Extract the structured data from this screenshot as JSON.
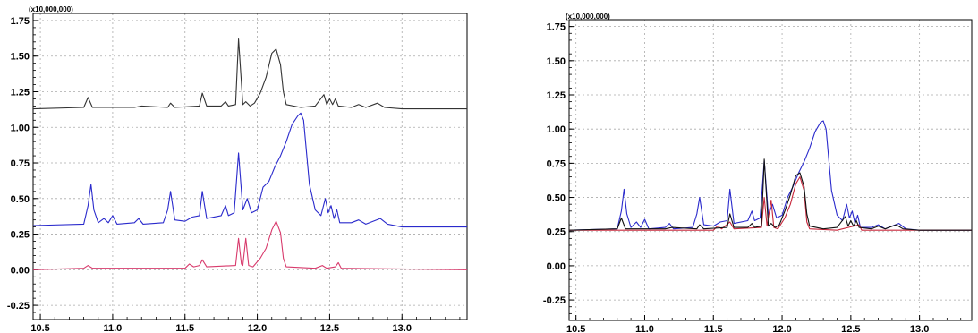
{
  "chart_data": [
    {
      "type": "line",
      "title": "",
      "xlabel": "",
      "ylabel": "",
      "scale_label": "(x10,000,000)",
      "xlim": [
        10.45,
        13.45
      ],
      "ylim": [
        -0.35,
        1.8
      ],
      "x_ticks": [
        "10.5",
        "11.0",
        "11.5",
        "12.0",
        "12.5",
        "13.0"
      ],
      "y_ticks": [
        "1.75",
        "1.50",
        "1.25",
        "1.00",
        "0.75",
        "0.50",
        "0.25",
        "0.00",
        "-0.25"
      ],
      "grid": true,
      "colors": [
        "#333333",
        "#2a2acc",
        "#d83a6c"
      ],
      "series": [
        {
          "baseline": 1.13,
          "points": [
            [
              10.45,
              1.13
            ],
            [
              10.8,
              1.14
            ],
            [
              10.83,
              1.21
            ],
            [
              10.86,
              1.14
            ],
            [
              11.15,
              1.14
            ],
            [
              11.2,
              1.15
            ],
            [
              11.38,
              1.14
            ],
            [
              11.4,
              1.17
            ],
            [
              11.43,
              1.14
            ],
            [
              11.6,
              1.15
            ],
            [
              11.62,
              1.24
            ],
            [
              11.65,
              1.15
            ],
            [
              11.75,
              1.15
            ],
            [
              11.78,
              1.18
            ],
            [
              11.8,
              1.15
            ],
            [
              11.85,
              1.16
            ],
            [
              11.87,
              1.62
            ],
            [
              11.9,
              1.16
            ],
            [
              11.92,
              1.18
            ],
            [
              11.95,
              1.15
            ],
            [
              11.98,
              1.17
            ],
            [
              12.02,
              1.24
            ],
            [
              12.06,
              1.35
            ],
            [
              12.1,
              1.52
            ],
            [
              12.13,
              1.55
            ],
            [
              12.16,
              1.44
            ],
            [
              12.18,
              1.25
            ],
            [
              12.2,
              1.16
            ],
            [
              12.3,
              1.14
            ],
            [
              12.4,
              1.15
            ],
            [
              12.46,
              1.23
            ],
            [
              12.48,
              1.16
            ],
            [
              12.5,
              1.2
            ],
            [
              12.52,
              1.16
            ],
            [
              12.54,
              1.2
            ],
            [
              12.56,
              1.15
            ],
            [
              12.65,
              1.14
            ],
            [
              12.7,
              1.16
            ],
            [
              12.75,
              1.14
            ],
            [
              12.83,
              1.17
            ],
            [
              12.88,
              1.14
            ],
            [
              13.0,
              1.13
            ],
            [
              13.45,
              1.13
            ]
          ]
        },
        {
          "baseline": 0.3,
          "points": [
            [
              10.45,
              0.31
            ],
            [
              10.8,
              0.32
            ],
            [
              10.83,
              0.45
            ],
            [
              10.85,
              0.6
            ],
            [
              10.87,
              0.42
            ],
            [
              10.9,
              0.33
            ],
            [
              10.94,
              0.36
            ],
            [
              10.97,
              0.33
            ],
            [
              11.0,
              0.38
            ],
            [
              11.03,
              0.32
            ],
            [
              11.15,
              0.33
            ],
            [
              11.18,
              0.36
            ],
            [
              11.21,
              0.32
            ],
            [
              11.35,
              0.33
            ],
            [
              11.38,
              0.42
            ],
            [
              11.4,
              0.55
            ],
            [
              11.43,
              0.35
            ],
            [
              11.5,
              0.34
            ],
            [
              11.55,
              0.37
            ],
            [
              11.6,
              0.38
            ],
            [
              11.62,
              0.55
            ],
            [
              11.65,
              0.36
            ],
            [
              11.75,
              0.38
            ],
            [
              11.78,
              0.45
            ],
            [
              11.8,
              0.38
            ],
            [
              11.84,
              0.4
            ],
            [
              11.87,
              0.82
            ],
            [
              11.9,
              0.42
            ],
            [
              11.93,
              0.5
            ],
            [
              11.96,
              0.4
            ],
            [
              12.0,
              0.42
            ],
            [
              12.04,
              0.58
            ],
            [
              12.08,
              0.62
            ],
            [
              12.12,
              0.72
            ],
            [
              12.16,
              0.8
            ],
            [
              12.2,
              0.9
            ],
            [
              12.24,
              1.02
            ],
            [
              12.28,
              1.08
            ],
            [
              12.3,
              1.1
            ],
            [
              12.32,
              1.05
            ],
            [
              12.36,
              0.6
            ],
            [
              12.4,
              0.42
            ],
            [
              12.44,
              0.38
            ],
            [
              12.47,
              0.5
            ],
            [
              12.49,
              0.4
            ],
            [
              12.51,
              0.45
            ],
            [
              12.53,
              0.36
            ],
            [
              12.55,
              0.42
            ],
            [
              12.57,
              0.33
            ],
            [
              12.65,
              0.33
            ],
            [
              12.7,
              0.35
            ],
            [
              12.75,
              0.32
            ],
            [
              12.8,
              0.34
            ],
            [
              12.85,
              0.36
            ],
            [
              12.9,
              0.32
            ],
            [
              13.0,
              0.3
            ],
            [
              13.45,
              0.3
            ]
          ]
        },
        {
          "baseline": 0.0,
          "points": [
            [
              10.45,
              0.0
            ],
            [
              10.8,
              0.01
            ],
            [
              10.83,
              0.03
            ],
            [
              10.86,
              0.01
            ],
            [
              11.5,
              0.01
            ],
            [
              11.53,
              0.04
            ],
            [
              11.56,
              0.02
            ],
            [
              11.6,
              0.03
            ],
            [
              11.62,
              0.07
            ],
            [
              11.65,
              0.02
            ],
            [
              11.85,
              0.03
            ],
            [
              11.87,
              0.22
            ],
            [
              11.89,
              0.04
            ],
            [
              11.9,
              0.03
            ],
            [
              11.92,
              0.22
            ],
            [
              11.94,
              0.03
            ],
            [
              11.97,
              0.02
            ],
            [
              12.02,
              0.08
            ],
            [
              12.06,
              0.15
            ],
            [
              12.1,
              0.28
            ],
            [
              12.13,
              0.34
            ],
            [
              12.16,
              0.26
            ],
            [
              12.18,
              0.08
            ],
            [
              12.2,
              0.02
            ],
            [
              12.4,
              0.01
            ],
            [
              12.45,
              0.03
            ],
            [
              12.48,
              0.01
            ],
            [
              12.54,
              0.02
            ],
            [
              12.56,
              0.05
            ],
            [
              12.58,
              0.01
            ],
            [
              13.45,
              0.0
            ]
          ]
        }
      ]
    },
    {
      "type": "line",
      "title": "",
      "xlabel": "",
      "ylabel": "",
      "scale_label": "(x10,000,000)",
      "xlim": [
        10.45,
        13.38
      ],
      "ylim": [
        -0.4,
        1.8
      ],
      "x_ticks": [
        "10.5",
        "11.0",
        "11.5",
        "12.0",
        "12.5",
        "13.0"
      ],
      "y_ticks": [
        "1.75",
        "1.50",
        "1.25",
        "1.00",
        "0.75",
        "0.50",
        "0.25",
        "0.00",
        "-0.25"
      ],
      "grid": true,
      "colors": [
        "#2a2acc",
        "#c8283c",
        "#111111"
      ],
      "series": [
        {
          "points": [
            [
              10.45,
              0.26
            ],
            [
              10.8,
              0.27
            ],
            [
              10.83,
              0.4
            ],
            [
              10.85,
              0.56
            ],
            [
              10.87,
              0.38
            ],
            [
              10.9,
              0.28
            ],
            [
              10.94,
              0.32
            ],
            [
              10.97,
              0.28
            ],
            [
              11.0,
              0.34
            ],
            [
              11.03,
              0.27
            ],
            [
              11.15,
              0.28
            ],
            [
              11.18,
              0.31
            ],
            [
              11.21,
              0.27
            ],
            [
              11.35,
              0.28
            ],
            [
              11.38,
              0.38
            ],
            [
              11.4,
              0.5
            ],
            [
              11.43,
              0.3
            ],
            [
              11.5,
              0.29
            ],
            [
              11.55,
              0.32
            ],
            [
              11.6,
              0.33
            ],
            [
              11.62,
              0.56
            ],
            [
              11.65,
              0.31
            ],
            [
              11.75,
              0.33
            ],
            [
              11.78,
              0.4
            ],
            [
              11.8,
              0.33
            ],
            [
              11.84,
              0.35
            ],
            [
              11.87,
              0.77
            ],
            [
              11.9,
              0.37
            ],
            [
              11.93,
              0.45
            ],
            [
              11.96,
              0.35
            ],
            [
              12.0,
              0.37
            ],
            [
              12.04,
              0.5
            ],
            [
              12.08,
              0.58
            ],
            [
              12.12,
              0.68
            ],
            [
              12.16,
              0.76
            ],
            [
              12.2,
              0.86
            ],
            [
              12.24,
              0.98
            ],
            [
              12.28,
              1.05
            ],
            [
              12.3,
              1.06
            ],
            [
              12.32,
              1.0
            ],
            [
              12.36,
              0.55
            ],
            [
              12.4,
              0.37
            ],
            [
              12.44,
              0.33
            ],
            [
              12.47,
              0.45
            ],
            [
              12.49,
              0.35
            ],
            [
              12.51,
              0.4
            ],
            [
              12.53,
              0.31
            ],
            [
              12.55,
              0.37
            ],
            [
              12.57,
              0.28
            ],
            [
              12.65,
              0.28
            ],
            [
              12.7,
              0.3
            ],
            [
              12.75,
              0.27
            ],
            [
              12.8,
              0.29
            ],
            [
              12.85,
              0.31
            ],
            [
              12.9,
              0.27
            ],
            [
              13.0,
              0.26
            ],
            [
              13.38,
              0.26
            ]
          ]
        },
        {
          "points": [
            [
              10.45,
              0.26
            ],
            [
              11.5,
              0.26
            ],
            [
              11.53,
              0.29
            ],
            [
              11.56,
              0.27
            ],
            [
              11.62,
              0.32
            ],
            [
              11.65,
              0.27
            ],
            [
              11.85,
              0.28
            ],
            [
              11.87,
              0.5
            ],
            [
              11.89,
              0.29
            ],
            [
              11.92,
              0.48
            ],
            [
              11.94,
              0.28
            ],
            [
              11.97,
              0.27
            ],
            [
              12.02,
              0.35
            ],
            [
              12.06,
              0.45
            ],
            [
              12.1,
              0.6
            ],
            [
              12.13,
              0.65
            ],
            [
              12.16,
              0.55
            ],
            [
              12.18,
              0.32
            ],
            [
              12.2,
              0.27
            ],
            [
              12.4,
              0.26
            ],
            [
              12.56,
              0.3
            ],
            [
              12.58,
              0.26
            ],
            [
              13.38,
              0.26
            ]
          ]
        },
        {
          "points": [
            [
              10.45,
              0.26
            ],
            [
              10.8,
              0.27
            ],
            [
              10.83,
              0.35
            ],
            [
              10.86,
              0.27
            ],
            [
              11.15,
              0.27
            ],
            [
              11.2,
              0.28
            ],
            [
              11.38,
              0.27
            ],
            [
              11.4,
              0.3
            ],
            [
              11.43,
              0.27
            ],
            [
              11.6,
              0.28
            ],
            [
              11.62,
              0.38
            ],
            [
              11.65,
              0.28
            ],
            [
              11.75,
              0.28
            ],
            [
              11.78,
              0.31
            ],
            [
              11.8,
              0.28
            ],
            [
              11.85,
              0.29
            ],
            [
              11.87,
              0.78
            ],
            [
              11.9,
              0.29
            ],
            [
              11.92,
              0.31
            ],
            [
              11.95,
              0.28
            ],
            [
              11.98,
              0.3
            ],
            [
              12.02,
              0.4
            ],
            [
              12.06,
              0.52
            ],
            [
              12.1,
              0.66
            ],
            [
              12.13,
              0.68
            ],
            [
              12.16,
              0.58
            ],
            [
              12.18,
              0.38
            ],
            [
              12.2,
              0.29
            ],
            [
              12.3,
              0.27
            ],
            [
              12.4,
              0.28
            ],
            [
              12.46,
              0.36
            ],
            [
              12.48,
              0.29
            ],
            [
              12.5,
              0.33
            ],
            [
              12.52,
              0.29
            ],
            [
              12.54,
              0.33
            ],
            [
              12.56,
              0.28
            ],
            [
              12.65,
              0.27
            ],
            [
              12.7,
              0.29
            ],
            [
              12.75,
              0.27
            ],
            [
              12.83,
              0.3
            ],
            [
              12.88,
              0.27
            ],
            [
              13.0,
              0.26
            ],
            [
              13.38,
              0.26
            ]
          ]
        }
      ]
    }
  ]
}
